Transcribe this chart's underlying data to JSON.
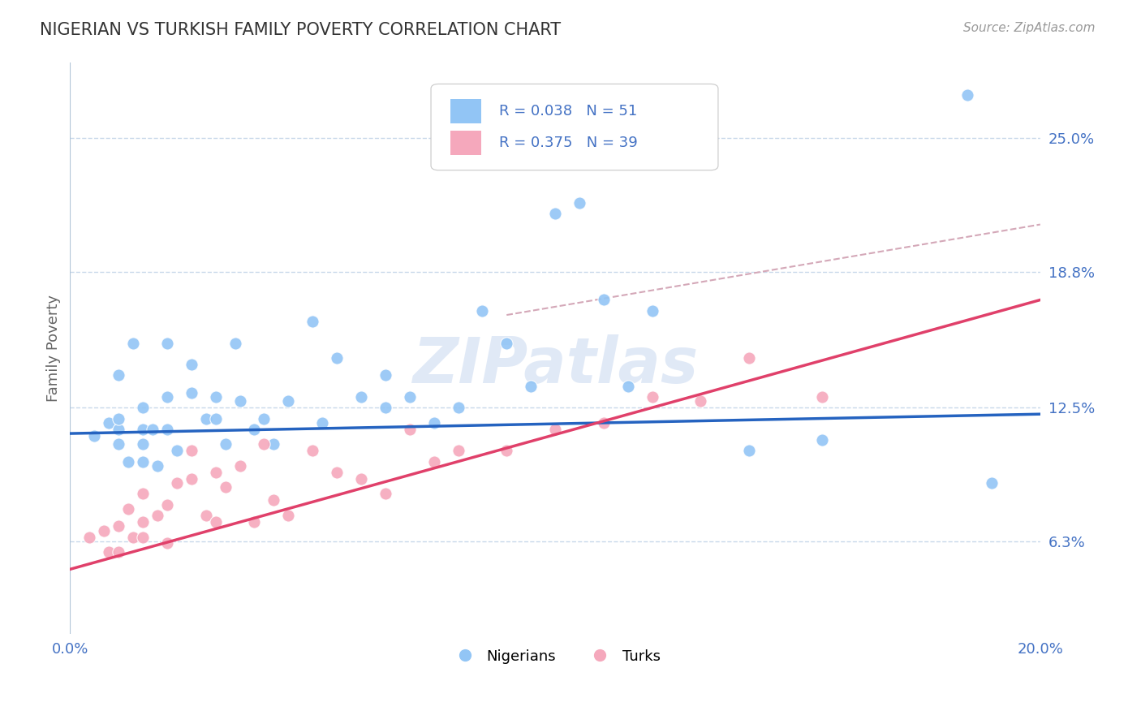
{
  "title": "NIGERIAN VS TURKISH FAMILY POVERTY CORRELATION CHART",
  "source": "Source: ZipAtlas.com",
  "ylabel": "Family Poverty",
  "xlim": [
    0.0,
    0.2
  ],
  "ylim": [
    0.02,
    0.285
  ],
  "yticks": [
    0.063,
    0.125,
    0.188,
    0.25
  ],
  "ytick_labels": [
    "6.3%",
    "12.5%",
    "18.8%",
    "25.0%"
  ],
  "xticks": [
    0.0,
    0.2
  ],
  "xtick_labels": [
    "0.0%",
    "20.0%"
  ],
  "legend_labels": [
    "Nigerians",
    "Turks"
  ],
  "legend_R": [
    0.038,
    0.375
  ],
  "legend_N": [
    51,
    39
  ],
  "nigerian_color": "#92c5f5",
  "turkish_color": "#f5a8bc",
  "nigerian_line_color": "#2563c0",
  "turkish_line_color": "#e0406a",
  "nigerian_line_y0": 0.113,
  "nigerian_line_y1": 0.122,
  "turkish_line_y0": 0.05,
  "turkish_line_y1": 0.175,
  "dash_line_x0": 0.09,
  "dash_line_y0": 0.168,
  "dash_line_x1": 0.2,
  "dash_line_y1": 0.21,
  "watermark": "ZIPatlas",
  "watermark_color": "#c8d8f0",
  "background_color": "#ffffff",
  "grid_color": "#c8d8ea",
  "nigerian_scatter_x": [
    0.005,
    0.008,
    0.01,
    0.01,
    0.01,
    0.01,
    0.012,
    0.013,
    0.015,
    0.015,
    0.015,
    0.015,
    0.017,
    0.018,
    0.02,
    0.02,
    0.02,
    0.022,
    0.025,
    0.025,
    0.028,
    0.03,
    0.03,
    0.032,
    0.034,
    0.035,
    0.038,
    0.04,
    0.042,
    0.045,
    0.05,
    0.052,
    0.055,
    0.06,
    0.065,
    0.065,
    0.07,
    0.075,
    0.08,
    0.085,
    0.09,
    0.095,
    0.1,
    0.105,
    0.11,
    0.115,
    0.12,
    0.14,
    0.155,
    0.185,
    0.19
  ],
  "nigerian_scatter_y": [
    0.112,
    0.118,
    0.14,
    0.115,
    0.12,
    0.108,
    0.1,
    0.155,
    0.115,
    0.1,
    0.108,
    0.125,
    0.115,
    0.098,
    0.155,
    0.13,
    0.115,
    0.105,
    0.145,
    0.132,
    0.12,
    0.13,
    0.12,
    0.108,
    0.155,
    0.128,
    0.115,
    0.12,
    0.108,
    0.128,
    0.165,
    0.118,
    0.148,
    0.13,
    0.14,
    0.125,
    0.13,
    0.118,
    0.125,
    0.17,
    0.155,
    0.135,
    0.215,
    0.22,
    0.175,
    0.135,
    0.17,
    0.105,
    0.11,
    0.27,
    0.09
  ],
  "turkish_scatter_x": [
    0.004,
    0.007,
    0.008,
    0.01,
    0.01,
    0.012,
    0.013,
    0.015,
    0.015,
    0.015,
    0.018,
    0.02,
    0.02,
    0.022,
    0.025,
    0.025,
    0.028,
    0.03,
    0.03,
    0.032,
    0.035,
    0.038,
    0.04,
    0.042,
    0.045,
    0.05,
    0.055,
    0.06,
    0.065,
    0.07,
    0.075,
    0.08,
    0.09,
    0.1,
    0.11,
    0.12,
    0.13,
    0.14,
    0.155
  ],
  "turkish_scatter_y": [
    0.065,
    0.068,
    0.058,
    0.07,
    0.058,
    0.078,
    0.065,
    0.072,
    0.085,
    0.065,
    0.075,
    0.08,
    0.062,
    0.09,
    0.105,
    0.092,
    0.075,
    0.095,
    0.072,
    0.088,
    0.098,
    0.072,
    0.108,
    0.082,
    0.075,
    0.105,
    0.095,
    0.092,
    0.085,
    0.115,
    0.1,
    0.105,
    0.105,
    0.115,
    0.118,
    0.13,
    0.128,
    0.148,
    0.13
  ]
}
